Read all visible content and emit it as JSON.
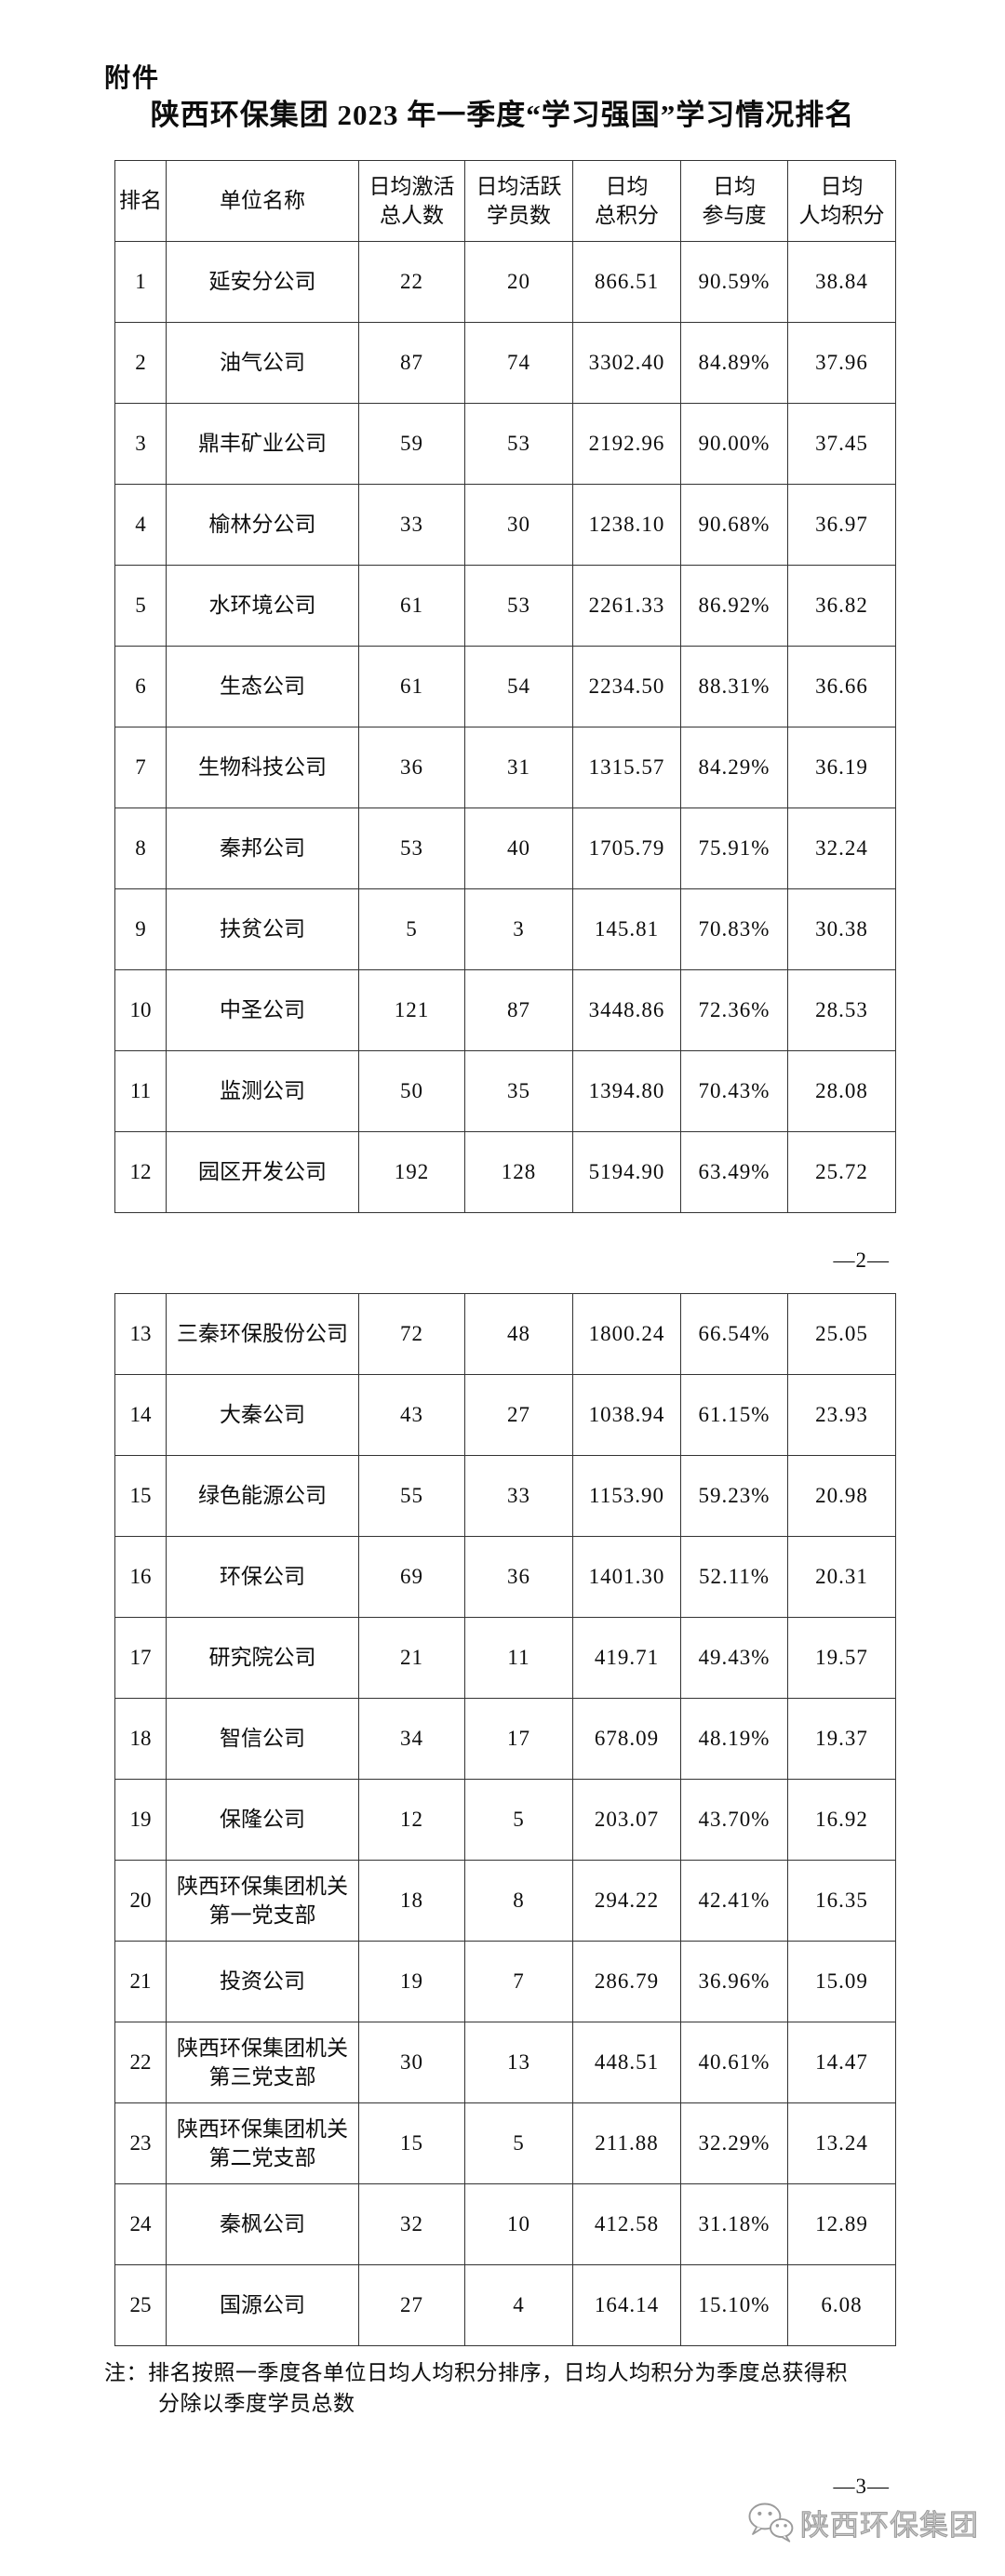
{
  "colors": {
    "text": "#0d0d0d",
    "table_border": "#333333",
    "watermark_gray": "#9b9b9b",
    "background": "#ffffff"
  },
  "document": {
    "attachment_label": "附件",
    "title": "陕西环保集团 2023 年一季度“学习强国”学习情况排名",
    "page_marker_2": "—2—",
    "page_marker_3": "—3—",
    "note_line1": "注：排名按照一季度各单位日均人均积分排序，日均人均积分为季度总获得积",
    "note_line2": "分除以季度学员总数",
    "footer_brand": {
      "icon": "wechat-icon",
      "text": "陕西环保集团"
    }
  },
  "table": {
    "headers": [
      "排名",
      "单位名称",
      "日均激活\n总人数",
      "日均活跃\n学员数",
      "日均\n总积分",
      "日均\n参与度",
      "日均\n人均积分"
    ],
    "page1_rows": [
      [
        "1",
        "延安分公司",
        "22",
        "20",
        "866.51",
        "90.59%",
        "38.84"
      ],
      [
        "2",
        "油气公司",
        "87",
        "74",
        "3302.40",
        "84.89%",
        "37.96"
      ],
      [
        "3",
        "鼎丰矿业公司",
        "59",
        "53",
        "2192.96",
        "90.00%",
        "37.45"
      ],
      [
        "4",
        "榆林分公司",
        "33",
        "30",
        "1238.10",
        "90.68%",
        "36.97"
      ],
      [
        "5",
        "水环境公司",
        "61",
        "53",
        "2261.33",
        "86.92%",
        "36.82"
      ],
      [
        "6",
        "生态公司",
        "61",
        "54",
        "2234.50",
        "88.31%",
        "36.66"
      ],
      [
        "7",
        "生物科技公司",
        "36",
        "31",
        "1315.57",
        "84.29%",
        "36.19"
      ],
      [
        "8",
        "秦邦公司",
        "53",
        "40",
        "1705.79",
        "75.91%",
        "32.24"
      ],
      [
        "9",
        "扶贫公司",
        "5",
        "3",
        "145.81",
        "70.83%",
        "30.38"
      ],
      [
        "10",
        "中圣公司",
        "121",
        "87",
        "3448.86",
        "72.36%",
        "28.53"
      ],
      [
        "11",
        "监测公司",
        "50",
        "35",
        "1394.80",
        "70.43%",
        "28.08"
      ],
      [
        "12",
        "园区开发公司",
        "192",
        "128",
        "5194.90",
        "63.49%",
        "25.72"
      ]
    ],
    "page2_rows": [
      [
        "13",
        "三秦环保股份公司",
        "72",
        "48",
        "1800.24",
        "66.54%",
        "25.05"
      ],
      [
        "14",
        "大秦公司",
        "43",
        "27",
        "1038.94",
        "61.15%",
        "23.93"
      ],
      [
        "15",
        "绿色能源公司",
        "55",
        "33",
        "1153.90",
        "59.23%",
        "20.98"
      ],
      [
        "16",
        "环保公司",
        "69",
        "36",
        "1401.30",
        "52.11%",
        "20.31"
      ],
      [
        "17",
        "研究院公司",
        "21",
        "11",
        "419.71",
        "49.43%",
        "19.57"
      ],
      [
        "18",
        "智信公司",
        "34",
        "17",
        "678.09",
        "48.19%",
        "19.37"
      ],
      [
        "19",
        "保隆公司",
        "12",
        "5",
        "203.07",
        "43.70%",
        "16.92"
      ],
      [
        "20",
        "陕西环保集团机关\n第一党支部",
        "18",
        "8",
        "294.22",
        "42.41%",
        "16.35"
      ],
      [
        "21",
        "投资公司",
        "19",
        "7",
        "286.79",
        "36.96%",
        "15.09"
      ],
      [
        "22",
        "陕西环保集团机关\n第三党支部",
        "30",
        "13",
        "448.51",
        "40.61%",
        "14.47"
      ],
      [
        "23",
        "陕西环保集团机关\n第二党支部",
        "15",
        "5",
        "211.88",
        "32.29%",
        "13.24"
      ],
      [
        "24",
        "秦枫公司",
        "32",
        "10",
        "412.58",
        "31.18%",
        "12.89"
      ],
      [
        "25",
        "国源公司",
        "27",
        "4",
        "164.14",
        "15.10%",
        "6.08"
      ]
    ]
  }
}
